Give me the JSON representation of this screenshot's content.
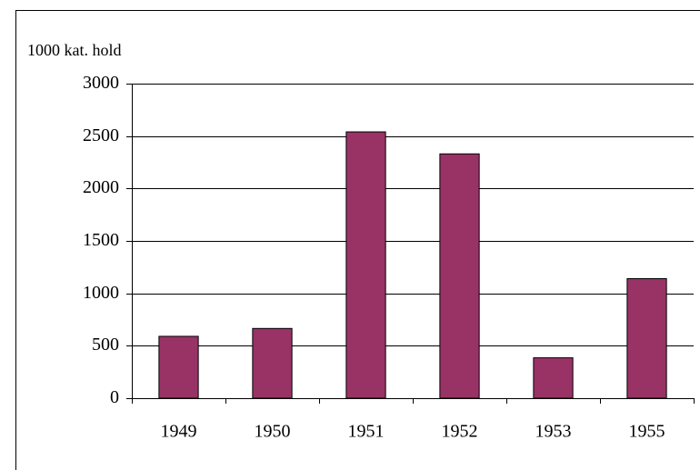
{
  "chart_data": {
    "type": "bar",
    "y_axis_label": "1000 kat. hold",
    "categories": [
      "1949",
      "1950",
      "1951",
      "1952",
      "1953",
      "1955"
    ],
    "values": [
      590,
      665,
      2540,
      2330,
      385,
      1140
    ],
    "color": "#993366",
    "ylim": [
      0,
      3000
    ],
    "yticks": [
      0,
      500,
      1000,
      1500,
      2000,
      2500,
      3000
    ],
    "grid": true
  }
}
